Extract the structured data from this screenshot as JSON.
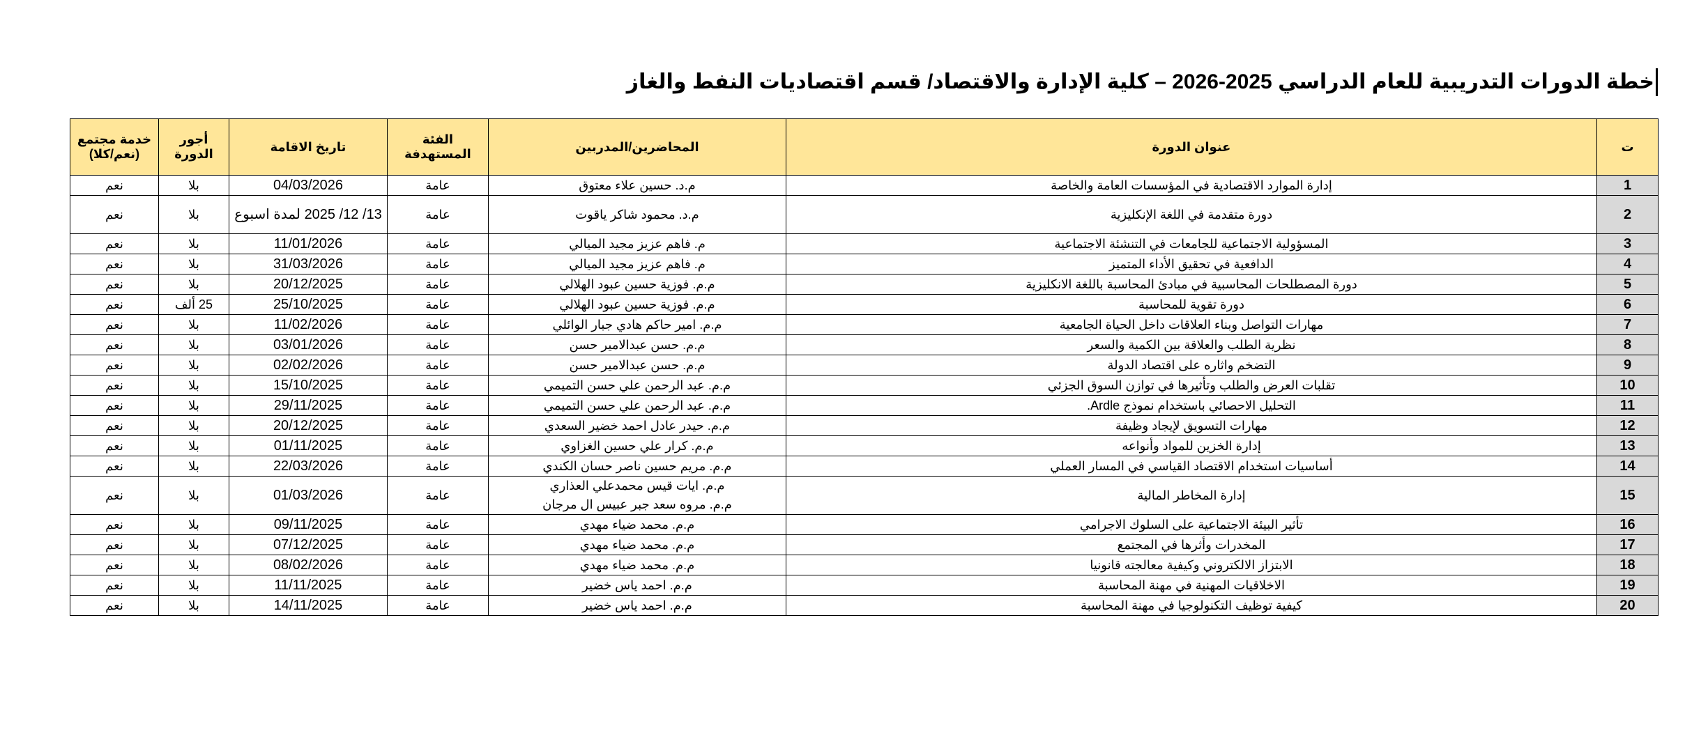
{
  "title": "خطة الدورات التدريبية للعام الدراسي 2025-2026 – كلية الإدارة والاقتصاد/ قسم اقتصاديات النفط والغاز",
  "colors": {
    "header_bg": "#ffe699",
    "number_col_bg": "#d9d9d9"
  },
  "table": {
    "headers": {
      "num": "ت",
      "course": "عنوان الدورة",
      "trainers": "المحاضرين/المدربين",
      "audience": "الفئة المستهدفة",
      "date": "تاريخ الاقامة",
      "fees": "أجور الدورة",
      "community": "خدمة مجتمع (نعم/كلا)"
    },
    "rows": [
      {
        "num": "1",
        "course": "إدارة الموارد الاقتصادية في المؤسسات العامة والخاصة",
        "trainers": "م.د. حسين علاء معتوق",
        "audience": "عامة",
        "date": "04/03/2026",
        "fees": "بلا",
        "community": "نعم"
      },
      {
        "num": "2",
        "course": "دورة متقدمة في اللغة الإنكليزية",
        "trainers": "م.د. محمود شاكر ياقوت",
        "audience": "عامة",
        "date": "13/ 12/ 2025 لمدة اسبوع",
        "fees": "بلا",
        "community": "نعم"
      },
      {
        "num": "3",
        "course": "المسؤولية الاجتماعية للجامعات في التنشئة الاجتماعية",
        "trainers": "م. فاهم عزيز مجيد الميالي",
        "audience": "عامة",
        "date": "11/01/2026",
        "fees": "بلا",
        "community": "نعم"
      },
      {
        "num": "4",
        "course": "الدافعية في تحقيق الأداء المتميز",
        "trainers": "م. فاهم عزيز مجيد الميالي",
        "audience": "عامة",
        "date": "31/03/2026",
        "fees": "بلا",
        "community": "نعم"
      },
      {
        "num": "5",
        "course": "دورة المصطلحات المحاسبية في مبادئ المحاسبة باللغة الانكليزية",
        "trainers": "م.م. فوزية حسين عبود الهلالي",
        "audience": "عامة",
        "date": "20/12/2025",
        "fees": "بلا",
        "community": "نعم"
      },
      {
        "num": "6",
        "course": "دورة تقوية للمحاسبة",
        "trainers": "م.م. فوزية حسين عبود الهلالي",
        "audience": "عامة",
        "date": "25/10/2025",
        "fees": "25 ألف",
        "community": "نعم"
      },
      {
        "num": "7",
        "course": "مهارات التواصل وبناء العلاقات داخل الحياة الجامعية",
        "trainers": "م.م. امير حاكم هادي جبار الوائلي",
        "audience": "عامة",
        "date": "11/02/2026",
        "fees": "بلا",
        "community": "نعم"
      },
      {
        "num": "8",
        "course": "نظرية الطلب والعلاقة بين الكمية والسعر",
        "trainers": "م.م. حسن عبدالامير حسن",
        "audience": "عامة",
        "date": "03/01/2026",
        "fees": "بلا",
        "community": "نعم"
      },
      {
        "num": "9",
        "course": "التضخم واثاره على اقتصاد الدولة",
        "trainers": "م.م. حسن عبدالامير حسن",
        "audience": "عامة",
        "date": "02/02/2026",
        "fees": "بلا",
        "community": "نعم"
      },
      {
        "num": "10",
        "course": "تقلبات العرض والطلب وتأثيرها في توازن السوق الجزئي",
        "trainers": "م.م. عبد الرحمن علي حسن التميمي",
        "audience": "عامة",
        "date": "15/10/2025",
        "fees": "بلا",
        "community": "نعم"
      },
      {
        "num": "11",
        "course": "التحليل الاحصائي باستخدام نموذج Ardle.",
        "trainers": "م.م. عبد الرحمن علي حسن التميمي",
        "audience": "عامة",
        "date": "29/11/2025",
        "fees": "بلا",
        "community": "نعم"
      },
      {
        "num": "12",
        "course": "مهارات التسويق لإيجاد وظيفة",
        "trainers": "م.م. حيدر عادل احمد خضير السعدي",
        "audience": "عامة",
        "date": "20/12/2025",
        "fees": "بلا",
        "community": "نعم"
      },
      {
        "num": "13",
        "course": "إدارة الخزين للمواد وأنواعه",
        "trainers": "م.م. كرار علي حسين الغزاوي",
        "audience": "عامة",
        "date": "01/11/2025",
        "fees": "بلا",
        "community": "نعم"
      },
      {
        "num": "14",
        "course": "أساسيات استخدام الاقتصاد القياسي في المسار العملي",
        "trainers": "م.م. مريم حسين ناصر حسان الكندي",
        "audience": "عامة",
        "date": "22/03/2026",
        "fees": "بلا",
        "community": "نعم"
      },
      {
        "num": "15",
        "course": "إدارة المخاطر المالية",
        "trainers": "م.م. ايات قيس محمدعلي العذاري",
        "trainers2": "م.م. مروه سعد جبر عبيس ال مرجان",
        "audience": "عامة",
        "date": "01/03/2026",
        "fees": "بلا",
        "community": "نعم"
      },
      {
        "num": "16",
        "course": "تأثير البيئة الاجتماعية على السلوك الاجرامي",
        "trainers": "م.م. محمد ضياء مهدي",
        "audience": "عامة",
        "date": "09/11/2025",
        "fees": "بلا",
        "community": "نعم"
      },
      {
        "num": "17",
        "course": "المخدرات وأثرها في المجتمع",
        "trainers": "م.م. محمد ضياء مهدي",
        "audience": "عامة",
        "date": "07/12/2025",
        "fees": "بلا",
        "community": "نعم"
      },
      {
        "num": "18",
        "course": "الابتزاز الالكتروني وكيفية معالجته قانونيا",
        "trainers": "م.م. محمد ضياء مهدي",
        "audience": "عامة",
        "date": "08/02/2026",
        "fees": "بلا",
        "community": "نعم"
      },
      {
        "num": "19",
        "course": "الاخلاقيات المهنية في مهنة المحاسبة",
        "trainers": "م.م. احمد ياس خضير",
        "audience": "عامة",
        "date": "11/11/2025",
        "fees": "بلا",
        "community": "نعم"
      },
      {
        "num": "20",
        "course": "كيفية توظيف التكنولوجيا في مهنة المحاسبة",
        "trainers": "م.م. احمد ياس خضير",
        "audience": "عامة",
        "date": "14/11/2025",
        "fees": "بلا",
        "community": "نعم"
      }
    ]
  }
}
